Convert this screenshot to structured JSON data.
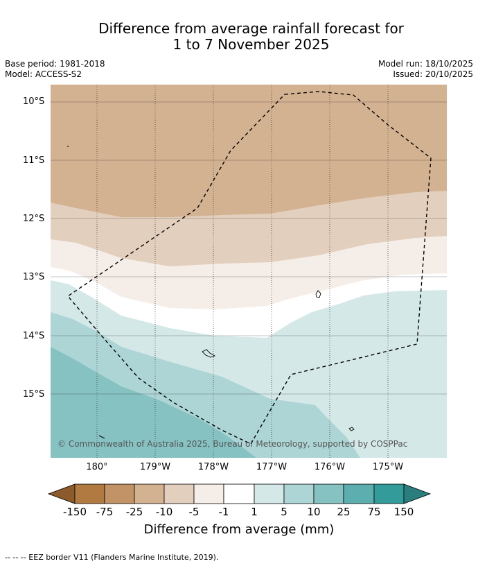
{
  "header": {
    "title_line1": "Difference from average rainfall forecast for",
    "title_line2": "1 to 7 November 2025",
    "base_period": "Base period: 1981-2018",
    "model": "Model: ACCESS-S2",
    "model_run": "Model run: 18/10/2025",
    "issued": "Issued: 20/10/2025"
  },
  "map": {
    "latitude_labels": [
      "10°S",
      "11°S",
      "12°S",
      "13°S",
      "14°S",
      "15°S"
    ],
    "longitude_labels": [
      "180°",
      "179°W",
      "178°W",
      "177°W",
      "176°W",
      "175°W"
    ],
    "copyright": "© Commonwealth of Australia 2025, Bureau of Meteorology, supported by COSPPac"
  },
  "legend": {
    "title": "Difference from average (mm)",
    "ticks": [
      "-150",
      "-75",
      "-25",
      "-10",
      "-5",
      "-1",
      "1",
      "5",
      "10",
      "25",
      "75",
      "150"
    ],
    "colors": {
      "lt_-150": "#8c5a2b",
      "-150_-75": "#b07a41",
      "-75_-25": "#c29366",
      "-25_-10": "#d3b292",
      "-10_-5": "#e3cfbd",
      "-5_-1": "#f5ede7",
      "-1_1": "#ffffff",
      "1_5": "#d4e8e7",
      "5_10": "#add5d5",
      "10_25": "#86c2c2",
      "25_75": "#5daeae",
      "75_150": "#339c9b",
      "gt_150": "#2a7f7e"
    }
  },
  "footnote": "--  --  -- EEZ border V11 (Flanders Marine Institute, 2019)."
}
